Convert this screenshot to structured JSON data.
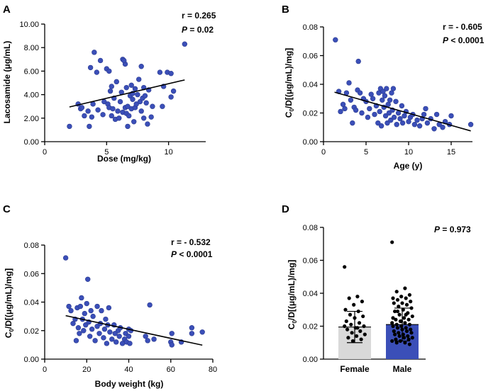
{
  "chart_data": [
    {
      "panel": "A",
      "type": "scatter",
      "xlabel": "Dose (mg/kg)",
      "ylabel": "Lacosamide (μg/mL)",
      "xlim": [
        0,
        13
      ],
      "ylim": [
        0,
        10
      ],
      "xticks": [
        "0",
        "5",
        "10"
      ],
      "xtick_values": [
        0,
        5,
        10
      ],
      "yticks": [
        "0.00",
        "2.00",
        "4.00",
        "6.00",
        "8.00",
        "10.00"
      ],
      "ytick_values": [
        0,
        2,
        4,
        6,
        8,
        10
      ],
      "r_text": "r = 0.265",
      "p_label": "P",
      "p_rest": " = 0.02",
      "fit": [
        [
          2,
          2.95
        ],
        [
          11.3,
          5.25
        ]
      ],
      "points": [
        [
          2,
          1.3
        ],
        [
          2.7,
          3.2
        ],
        [
          2.9,
          2.8
        ],
        [
          3,
          2.9
        ],
        [
          3.2,
          2.2
        ],
        [
          3.5,
          2.6
        ],
        [
          3.6,
          1.3
        ],
        [
          3.8,
          2.1
        ],
        [
          3.9,
          3.2
        ],
        [
          4.3,
          2.7
        ],
        [
          3.7,
          6.3
        ],
        [
          4,
          7.6
        ],
        [
          4.2,
          5.9
        ],
        [
          4.5,
          6.9
        ],
        [
          4.7,
          2.3
        ],
        [
          4.8,
          3.4
        ],
        [
          5,
          6.2
        ],
        [
          5.1,
          3.2
        ],
        [
          5.2,
          2.9
        ],
        [
          5.3,
          4.3
        ],
        [
          5.4,
          2.2
        ],
        [
          5.4,
          4.7
        ],
        [
          5.5,
          2.8
        ],
        [
          5.6,
          3.7
        ],
        [
          5.7,
          1.9
        ],
        [
          5.8,
          5.1
        ],
        [
          5.9,
          2.6
        ],
        [
          6,
          2.0
        ],
        [
          6.1,
          3.4
        ],
        [
          6.2,
          4.2
        ],
        [
          6.3,
          2.5
        ],
        [
          6.3,
          7.0
        ],
        [
          6.5,
          2.9
        ],
        [
          6.5,
          6.6
        ],
        [
          6.6,
          2.4
        ],
        [
          6.7,
          1.3
        ],
        [
          6.7,
          3.0
        ],
        [
          6.8,
          2.2
        ],
        [
          6.9,
          3.9
        ],
        [
          7,
          4.8
        ],
        [
          7,
          2.8
        ],
        [
          7.1,
          3.6
        ],
        [
          7.2,
          1.7
        ],
        [
          7.3,
          4.5
        ],
        [
          7.3,
          2.9
        ],
        [
          7.4,
          3.2
        ],
        [
          7.5,
          4.0
        ],
        [
          7.6,
          5.3
        ],
        [
          7.7,
          3.4
        ],
        [
          7.8,
          6.4
        ],
        [
          7.8,
          2.6
        ],
        [
          7.9,
          3.7
        ],
        [
          8,
          4.6
        ],
        [
          8,
          2.0
        ],
        [
          8.1,
          3.9
        ],
        [
          8.2,
          3.3
        ],
        [
          8.3,
          1.5
        ],
        [
          8.4,
          4.4
        ],
        [
          8.6,
          2.1
        ],
        [
          8.7,
          3.0
        ],
        [
          6.6,
          4.6
        ],
        [
          7.1,
          4.1
        ],
        [
          5.2,
          6.0
        ],
        [
          6.4,
          6.9
        ],
        [
          9.3,
          5.9
        ],
        [
          9.6,
          4.7
        ],
        [
          9.9,
          5.9
        ],
        [
          10.2,
          5.8
        ],
        [
          10.2,
          3.8
        ],
        [
          10.4,
          4.3
        ],
        [
          9.5,
          3.0
        ],
        [
          11.3,
          8.3
        ]
      ]
    },
    {
      "panel": "B",
      "type": "scatter",
      "xlabel": "Age (y)",
      "ylabel": "C0/D[(μg/mL)/mg]",
      "xlim": [
        0,
        17.5
      ],
      "ylim": [
        0,
        0.08
      ],
      "xticks": [
        "0",
        "5",
        "10",
        "15"
      ],
      "xtick_values": [
        0,
        5,
        10,
        15
      ],
      "yticks": [
        "0.00",
        "0.02",
        "0.04",
        "0.06",
        "0.08"
      ],
      "ytick_values": [
        0,
        0.02,
        0.04,
        0.06,
        0.08
      ],
      "r_text": "r = - 0.605",
      "p_label": "P",
      "p_rest": " < 0.0001",
      "fit": [
        [
          1.3,
          0.0345
        ],
        [
          17.3,
          0.0075
        ]
      ],
      "points": [
        [
          1.4,
          0.071
        ],
        [
          1.8,
          0.035
        ],
        [
          2,
          0.021
        ],
        [
          2.3,
          0.026
        ],
        [
          2.5,
          0.023
        ],
        [
          2.7,
          0.034
        ],
        [
          3,
          0.041
        ],
        [
          3.2,
          0.029
        ],
        [
          3.4,
          0.013
        ],
        [
          3.6,
          0.024
        ],
        [
          3.8,
          0.022
        ],
        [
          4,
          0.036
        ],
        [
          4.1,
          0.056
        ],
        [
          4.3,
          0.034
        ],
        [
          4.5,
          0.02
        ],
        [
          4.7,
          0.03
        ],
        [
          5,
          0.028
        ],
        [
          5.2,
          0.017
        ],
        [
          5.4,
          0.023
        ],
        [
          5.6,
          0.033
        ],
        [
          5.8,
          0.03
        ],
        [
          6,
          0.019
        ],
        [
          6.2,
          0.025
        ],
        [
          6.4,
          0.013
        ],
        [
          6.5,
          0.034
        ],
        [
          6.6,
          0.021
        ],
        [
          6.7,
          0.037
        ],
        [
          6.8,
          0.011
        ],
        [
          6.9,
          0.029
        ],
        [
          7,
          0.035
        ],
        [
          7.1,
          0.024
        ],
        [
          7.2,
          0.032
        ],
        [
          7.3,
          0.018
        ],
        [
          7.4,
          0.037
        ],
        [
          7.5,
          0.013
        ],
        [
          7.6,
          0.026
        ],
        [
          7.7,
          0.02
        ],
        [
          7.8,
          0.029
        ],
        [
          7.9,
          0.015
        ],
        [
          8,
          0.034
        ],
        [
          8.1,
          0.022
        ],
        [
          8.2,
          0.037
        ],
        [
          8.3,
          0.017
        ],
        [
          8.5,
          0.028
        ],
        [
          8.6,
          0.012
        ],
        [
          8.8,
          0.02
        ],
        [
          9,
          0.016
        ],
        [
          9.2,
          0.025
        ],
        [
          9.3,
          0.013
        ],
        [
          9.5,
          0.018
        ],
        [
          9.7,
          0.021
        ],
        [
          10,
          0.014
        ],
        [
          10.2,
          0.017
        ],
        [
          10.5,
          0.019
        ],
        [
          10.7,
          0.012
        ],
        [
          11,
          0.015
        ],
        [
          11.3,
          0.011
        ],
        [
          11.6,
          0.016
        ],
        [
          12,
          0.023
        ],
        [
          12.2,
          0.013
        ],
        [
          12.6,
          0.016
        ],
        [
          13,
          0.009
        ],
        [
          13.3,
          0.019
        ],
        [
          13.6,
          0.012
        ],
        [
          14,
          0.01
        ],
        [
          14.3,
          0.014
        ],
        [
          14.8,
          0.012
        ],
        [
          15,
          0.018
        ],
        [
          17.3,
          0.012
        ],
        [
          11.8,
          0.019
        ]
      ]
    },
    {
      "panel": "C",
      "type": "scatter",
      "xlabel": "Body weight (kg)",
      "ylabel": "C0/D[(μg/mL)/mg]",
      "xlim": [
        0,
        80
      ],
      "ylim": [
        0,
        0.08
      ],
      "xticks": [
        "0",
        "20",
        "40",
        "60",
        "80"
      ],
      "xtick_values": [
        0,
        20,
        40,
        60,
        80
      ],
      "yticks": [
        "0.00",
        "0.02",
        "0.04",
        "0.06",
        "0.08"
      ],
      "ytick_values": [
        0,
        0.02,
        0.04,
        0.06,
        0.08
      ],
      "r_text": "r = - 0.532",
      "p_label": "P",
      "p_rest": " < 0.0001",
      "fit": [
        [
          10,
          0.0305
        ],
        [
          75,
          0.0098
        ]
      ],
      "points": [
        [
          10,
          0.071
        ],
        [
          11.5,
          0.037
        ],
        [
          12.5,
          0.034
        ],
        [
          13.5,
          0.025
        ],
        [
          14.5,
          0.028
        ],
        [
          15,
          0.013
        ],
        [
          15.5,
          0.036
        ],
        [
          16,
          0.022
        ],
        [
          16.5,
          0.018
        ],
        [
          17,
          0.037
        ],
        [
          17.5,
          0.043
        ],
        [
          18,
          0.028
        ],
        [
          18.5,
          0.02
        ],
        [
          19,
          0.032
        ],
        [
          19.5,
          0.024
        ],
        [
          20,
          0.039
        ],
        [
          20.5,
          0.056
        ],
        [
          21,
          0.026
        ],
        [
          21.5,
          0.016
        ],
        [
          22,
          0.034
        ],
        [
          22.5,
          0.021
        ],
        [
          23,
          0.03
        ],
        [
          24,
          0.013
        ],
        [
          25,
          0.023
        ],
        [
          25,
          0.037
        ],
        [
          26,
          0.018
        ],
        [
          26.5,
          0.025
        ],
        [
          27,
          0.034
        ],
        [
          28,
          0.015
        ],
        [
          28.5,
          0.021
        ],
        [
          29,
          0.028
        ],
        [
          29.5,
          0.011
        ],
        [
          30,
          0.024
        ],
        [
          30.5,
          0.036
        ],
        [
          31,
          0.019
        ],
        [
          32,
          0.014
        ],
        [
          33,
          0.024
        ],
        [
          33.5,
          0.018
        ],
        [
          34,
          0.012
        ],
        [
          35,
          0.02
        ],
        [
          35.5,
          0.016
        ],
        [
          36,
          0.022
        ],
        [
          37,
          0.011
        ],
        [
          38,
          0.014
        ],
        [
          38.5,
          0.018
        ],
        [
          39,
          0.012
        ],
        [
          40,
          0.021
        ],
        [
          40,
          0.016
        ],
        [
          40.5,
          0.011
        ],
        [
          41,
          0.02
        ],
        [
          48,
          0.016
        ],
        [
          49,
          0.013
        ],
        [
          50,
          0.038
        ],
        [
          52,
          0.014
        ],
        [
          60,
          0.012
        ],
        [
          60.5,
          0.01
        ],
        [
          60.5,
          0.018
        ],
        [
          65,
          0.012
        ],
        [
          70,
          0.022
        ],
        [
          70,
          0.018
        ],
        [
          75,
          0.019
        ]
      ]
    },
    {
      "panel": "D",
      "type": "bar",
      "categories": [
        "Female",
        "Male"
      ],
      "means": [
        0.0195,
        0.021
      ],
      "sd_upper": [
        0.029,
        0.031
      ],
      "sd_lower": [
        0.01,
        0.011
      ],
      "bar_colors": [
        "#d9d9d9",
        "#3b4fb8"
      ],
      "ylabel": "C0/D[(μg/mL)/mg]",
      "ylim": [
        0,
        0.08
      ],
      "yticks": [
        "0.00",
        "0.02",
        "0.04",
        "0.06",
        "0.08"
      ],
      "ytick_values": [
        0,
        0.02,
        0.04,
        0.06,
        0.08
      ],
      "p_label": "P",
      "p_rest": " = 0.973",
      "female_points": [
        0.056,
        0.038,
        0.037,
        0.035,
        0.033,
        0.03,
        0.029,
        0.027,
        0.026,
        0.025,
        0.023,
        0.022,
        0.021,
        0.02,
        0.019,
        0.018,
        0.017,
        0.016,
        0.015,
        0.014,
        0.013,
        0.012,
        0.011,
        0.02,
        0.019
      ],
      "male_points": [
        0.071,
        0.043,
        0.041,
        0.039,
        0.038,
        0.037,
        0.037,
        0.036,
        0.035,
        0.034,
        0.034,
        0.033,
        0.032,
        0.031,
        0.03,
        0.029,
        0.028,
        0.027,
        0.026,
        0.025,
        0.024,
        0.024,
        0.023,
        0.022,
        0.022,
        0.021,
        0.021,
        0.02,
        0.02,
        0.019,
        0.019,
        0.018,
        0.018,
        0.017,
        0.017,
        0.016,
        0.016,
        0.015,
        0.015,
        0.014,
        0.014,
        0.013,
        0.013,
        0.012,
        0.012,
        0.011,
        0.011,
        0.01,
        0.01,
        0.009,
        0.023,
        0.025,
        0.027,
        0.029
      ]
    }
  ]
}
